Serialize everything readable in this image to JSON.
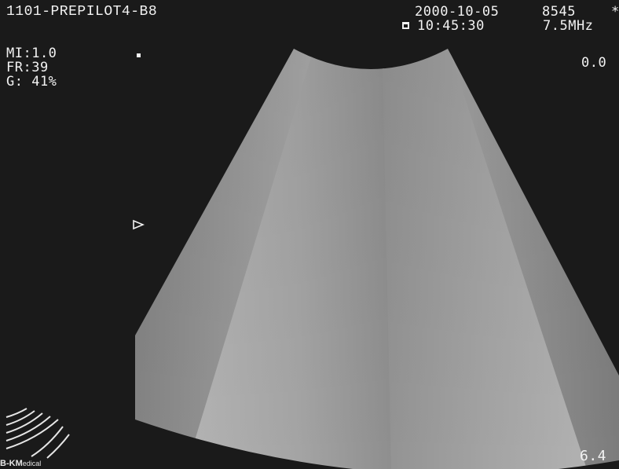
{
  "header": {
    "patient_id": "1101-PREPILOT4-B8",
    "date": "2000-10-05",
    "image_number": "8545",
    "star": "*",
    "time": "10:45:30",
    "frequency": "7.5MHz"
  },
  "parameters": {
    "mi": "MI:1.0",
    "frame_rate": "FR:39",
    "gain": "G: 41%"
  },
  "depth_scale": {
    "top": "0.0",
    "bottom": "6.4"
  },
  "logo": {
    "brand_bold": "B-K",
    "brand_m": "M",
    "brand_small": "edical"
  },
  "icons": {
    "focus_marker": "triangle-right-outline",
    "clip_icon": "clipboard-icon",
    "probe_icon": "transducer-arcs"
  },
  "colors": {
    "background": "#1a1a1a",
    "text": "#f2f2f2"
  }
}
